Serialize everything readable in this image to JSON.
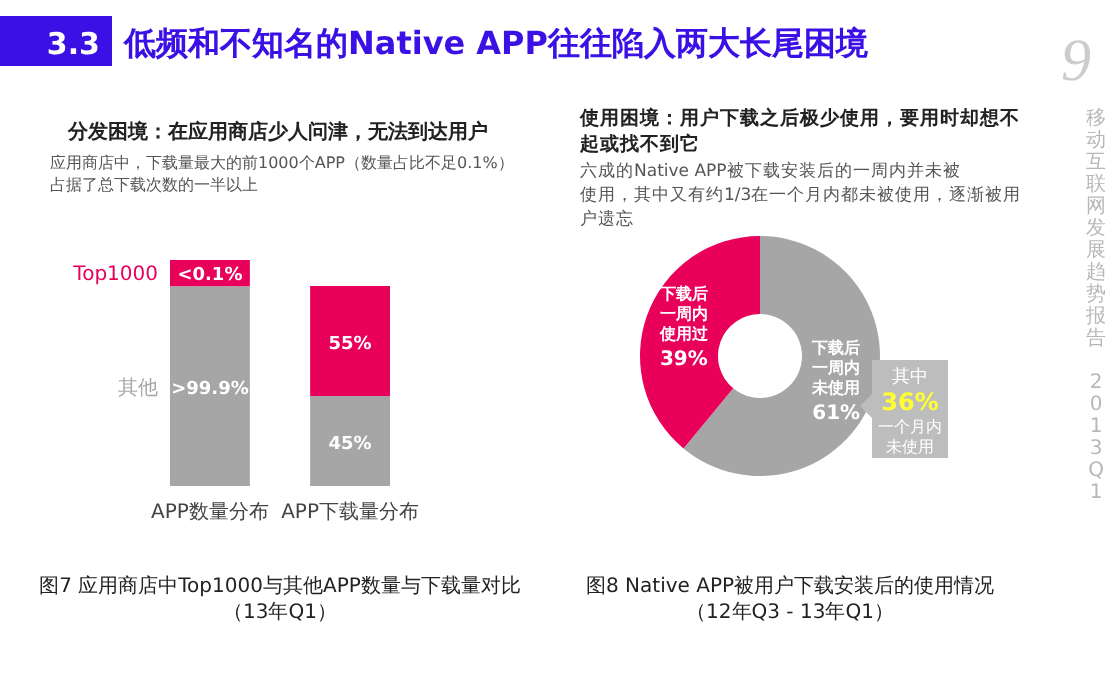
{
  "chart_data": [
    {
      "type": "bar",
      "stacked": true,
      "title": "3.3 低频和不知名的Native APP往往陷入两大长尾困境",
      "subtitle": "分发困境：在应用商店少人问津，无法到达用户",
      "categories": [
        "APP数量分布",
        "APP下载量分布"
      ],
      "series": [
        {
          "name": "其他",
          "color": "#a6a6a6",
          "values": [
            99.9,
            45
          ],
          "value_labels": [
            ">99.9%",
            "45%"
          ]
        },
        {
          "name": "Top1000",
          "color": "#e8005a",
          "values": [
            0.1,
            55
          ],
          "value_labels": [
            "<0.1%",
            "55%"
          ]
        }
      ],
      "legend": "left",
      "annotations": [
        "应用商店中，下载量最大的前1000个APP（数量占比不足0.1%）",
        "占据了总下载次数的一半以上",
        "图7 应用商店中Top1000与其他APP数量与下载量对比",
        "（13年Q1）"
      ]
    },
    {
      "type": "donut",
      "title": "使用困境：用户下载之后极少使用，要用时却想不起或找不到它",
      "subtitle": "六成的Native APP被下载安装后的一周内并未被使用，其中又有约1/3在一个月内都未被使用，逐渐被用户遗忘",
      "categories": [
        "下载后一周内未使用",
        "下载后一周内使用过"
      ],
      "values": [
        61,
        39
      ],
      "colors": [
        "#a6a6a6",
        "#e8005a"
      ],
      "value_labels": [
        "61%",
        "39%"
      ],
      "annotations": [
        "其中",
        "36%",
        "一个月内未使用",
        "图8 Native APP被用户下载安装后的使用情况",
        "（12年Q3 - 13年Q1）",
        "9",
        "移动互联网发展趋势报告 2013Q1"
      ]
    }
  ]
}
